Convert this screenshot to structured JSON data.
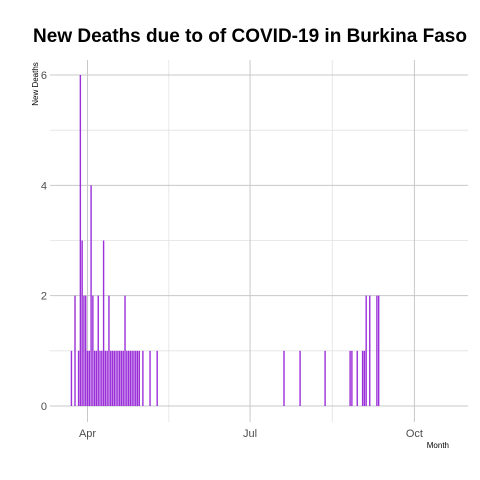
{
  "chart_data": {
    "type": "bar",
    "title": "New Deaths due to of COVID-19 in Burkina Faso",
    "xlabel": "Month",
    "ylabel": "New  Deaths",
    "ylim": [
      0,
      6.6
    ],
    "yticks": [
      0,
      2,
      4,
      6
    ],
    "xticks": [
      {
        "value": "2020-04-01",
        "label": "Apr"
      },
      {
        "value": "2020-07-01",
        "label": "Jul"
      },
      {
        "value": "2020-10-01",
        "label": "Oct"
      }
    ],
    "xlim": [
      "2020-03-11",
      "2020-10-31"
    ],
    "grid": true,
    "bar_color": "#9b30d9",
    "x": [
      "2020-03-23",
      "2020-03-25",
      "2020-03-27",
      "2020-03-28",
      "2020-03-29",
      "2020-03-30",
      "2020-03-31",
      "2020-04-01",
      "2020-04-02",
      "2020-04-03",
      "2020-04-04",
      "2020-04-05",
      "2020-04-06",
      "2020-04-07",
      "2020-04-08",
      "2020-04-09",
      "2020-04-10",
      "2020-04-11",
      "2020-04-12",
      "2020-04-13",
      "2020-04-14",
      "2020-04-15",
      "2020-04-16",
      "2020-04-17",
      "2020-04-18",
      "2020-04-19",
      "2020-04-20",
      "2020-04-21",
      "2020-04-22",
      "2020-04-23",
      "2020-04-24",
      "2020-04-25",
      "2020-04-26",
      "2020-04-27",
      "2020-04-28",
      "2020-04-29",
      "2020-04-30",
      "2020-05-02",
      "2020-05-06",
      "2020-05-10",
      "2020-07-20",
      "2020-07-29",
      "2020-08-12",
      "2020-08-26",
      "2020-08-27",
      "2020-08-30",
      "2020-09-02",
      "2020-09-03",
      "2020-09-04",
      "2020-09-06",
      "2020-09-10",
      "2020-09-11"
    ],
    "values": [
      1,
      2,
      1,
      6,
      3,
      2,
      2,
      1,
      1,
      4,
      2,
      1,
      1,
      2,
      1,
      1,
      3,
      1,
      1,
      2,
      1,
      1,
      1,
      1,
      1,
      1,
      1,
      1,
      2,
      1,
      1,
      1,
      1,
      1,
      1,
      1,
      1,
      1,
      1,
      1,
      1,
      1,
      1,
      1,
      1,
      1,
      1,
      1,
      2,
      2,
      2,
      2
    ]
  }
}
